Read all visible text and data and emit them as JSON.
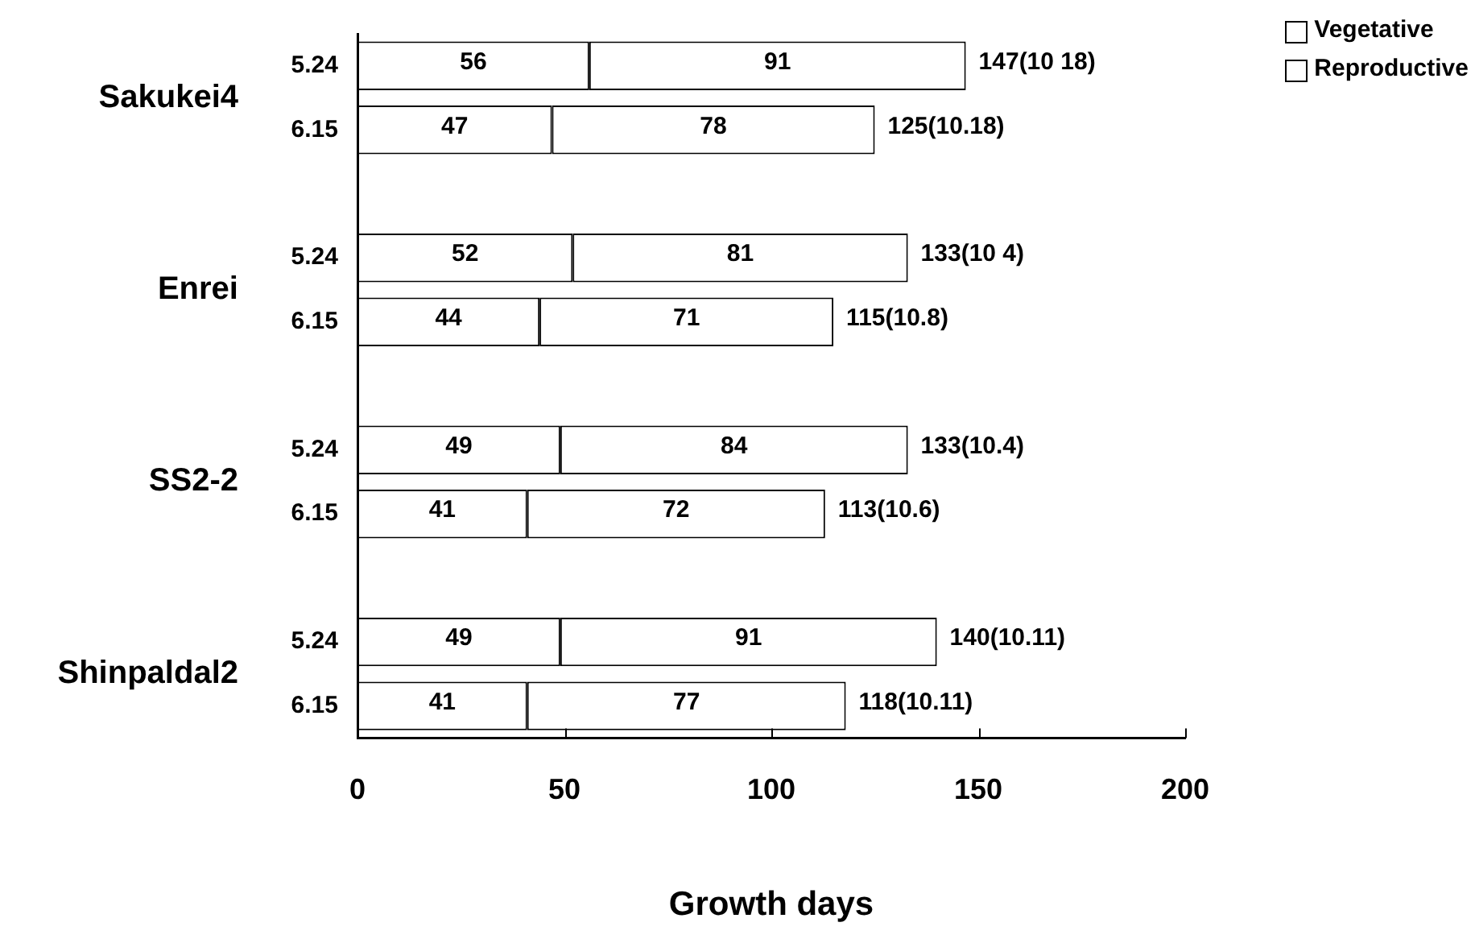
{
  "chart_data": {
    "type": "bar",
    "orientation": "horizontal",
    "stacked": true,
    "categories": [
      "5.24",
      "6.15",
      null,
      "5.24",
      "6.15",
      null,
      "5.24",
      "6.15",
      null,
      "5.24",
      "6.15"
    ],
    "series": [
      {
        "name": "Vegetative",
        "color": "#ffffff",
        "values": [
          56,
          47,
          null,
          52,
          44,
          null,
          49,
          41,
          null,
          49,
          41
        ]
      },
      {
        "name": "Reproductive",
        "color": "#ffffff",
        "values": [
          91,
          78,
          null,
          81,
          71,
          null,
          84,
          72,
          null,
          91,
          77
        ]
      }
    ],
    "totals": [
      "147(10 18)",
      "125(10.18)",
      null,
      "133(10 4)",
      "115(10.8)",
      null,
      "133(10.4)",
      "113(10.6)",
      null,
      "140(10.11)",
      "118(10.11)"
    ],
    "annotations": [
      "Sakukei4",
      "Enrei",
      "SS2-2",
      "Shinpaldal2"
    ],
    "xlabel": "Growth days",
    "xlim": [
      0,
      200
    ],
    "xticks": [
      0,
      50,
      100,
      150,
      200
    ],
    "data_labels": true,
    "grid": false,
    "legend": "top right"
  }
}
